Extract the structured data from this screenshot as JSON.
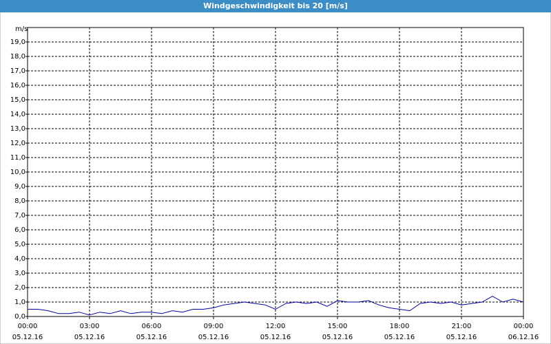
{
  "chart_data": {
    "type": "line",
    "title": "Windgeschwindigkeit bis 20 [m/s]",
    "y_unit": "m/s",
    "x": [
      0,
      0.5,
      1,
      1.5,
      2,
      2.5,
      3,
      3.5,
      4,
      4.5,
      5,
      5.5,
      6,
      6.5,
      7,
      7.5,
      8,
      8.5,
      9,
      9.5,
      10,
      10.5,
      11,
      11.5,
      12,
      12.5,
      13,
      13.5,
      14,
      14.5,
      15,
      15.5,
      16,
      16.5,
      17,
      17.5,
      18,
      18.5,
      19,
      19.5,
      20,
      20.5,
      21,
      21.5,
      22,
      22.5,
      23,
      23.5,
      24
    ],
    "series": [
      {
        "color": "#0000a0",
        "values": [
          0.5,
          0.5,
          0.4,
          0.2,
          0.2,
          0.3,
          0.1,
          0.3,
          0.2,
          0.4,
          0.2,
          0.3,
          0.3,
          0.2,
          0.4,
          0.3,
          0.5,
          0.5,
          0.6,
          0.8,
          0.9,
          1.0,
          0.9,
          0.8,
          0.5,
          0.9,
          1.0,
          0.9,
          1.0,
          0.7,
          1.1,
          1.0,
          1.0,
          1.1,
          0.8,
          0.6,
          0.5,
          0.4,
          0.9,
          1.0,
          0.9,
          1.0,
          0.8,
          0.9,
          1.0,
          1.4,
          1.0,
          1.2,
          1.0
        ]
      }
    ],
    "xlim": [
      0,
      24
    ],
    "xticks": [
      {
        "value": 0,
        "label": "00:00"
      },
      {
        "value": 3,
        "label": "03:00"
      },
      {
        "value": 6,
        "label": "06:00"
      },
      {
        "value": 9,
        "label": "09:00"
      },
      {
        "value": 12,
        "label": "12:00"
      },
      {
        "value": 15,
        "label": "15:00"
      },
      {
        "value": 18,
        "label": "18:00"
      },
      {
        "value": 21,
        "label": "21:00"
      },
      {
        "value": 24,
        "label": "00:00"
      }
    ],
    "xtick_dates": [
      "05.12.16",
      "05.12.16",
      "05.12.16",
      "05.12.16",
      "05.12.16",
      "05.12.16",
      "05.12.16",
      "05.12.16",
      "06.12.16"
    ],
    "ylim": [
      0,
      20
    ],
    "yticks": [
      {
        "value": 0,
        "label": "0,0"
      },
      {
        "value": 1,
        "label": "1,0"
      },
      {
        "value": 2,
        "label": "2,0"
      },
      {
        "value": 3,
        "label": "3,0"
      },
      {
        "value": 4,
        "label": "4,0"
      },
      {
        "value": 5,
        "label": "5,0"
      },
      {
        "value": 6,
        "label": "6,0"
      },
      {
        "value": 7,
        "label": "7,0"
      },
      {
        "value": 8,
        "label": "8,0"
      },
      {
        "value": 9,
        "label": "9,0"
      },
      {
        "value": 10,
        "label": "10,0"
      },
      {
        "value": 11,
        "label": "11,0"
      },
      {
        "value": 12,
        "label": "12,0"
      },
      {
        "value": 13,
        "label": "13,0"
      },
      {
        "value": 14,
        "label": "14,0"
      },
      {
        "value": 15,
        "label": "15,0"
      },
      {
        "value": 16,
        "label": "16,0"
      },
      {
        "value": 17,
        "label": "17,0"
      },
      {
        "value": 18,
        "label": "18,0"
      },
      {
        "value": 19,
        "label": "19,0"
      }
    ],
    "grid": true
  }
}
